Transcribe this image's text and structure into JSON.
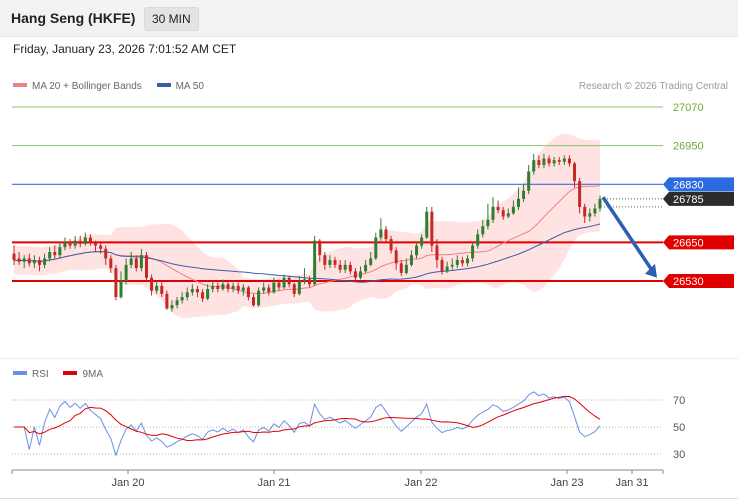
{
  "header": {
    "title": "Hang Seng (HKFE)",
    "timeframe": "30 MIN",
    "timestamp": "Friday, January 23, 2026 7:01:52 AM CET",
    "credit": "Research © 2026 Trading Central"
  },
  "colors": {
    "bull": "#2e7d32",
    "bear": "#c62828",
    "bollinger_fill": "#ffe2e2",
    "ma20": "#f08080",
    "ma50": "#3a5ea8",
    "level_red": "#e00000",
    "level_blue": "#3b6fe0",
    "level_green": "#8cc56a",
    "rsi": "#6b8fe6",
    "rsi_ma": "#e00000"
  },
  "chart_data": [
    {
      "type": "candlestick",
      "legend": [
        {
          "name": "MA 20 + Bollinger Bands",
          "color": "#f08080"
        },
        {
          "name": "MA 50",
          "color": "#3a5ea8"
        }
      ],
      "ylim": [
        26430,
        27100
      ],
      "x_ticks": [
        "Jan 20",
        "Jan 21",
        "Jan 22",
        "Jan 23",
        "Jan 31"
      ],
      "levels": [
        {
          "label": "27070",
          "value": 27070,
          "style": "green-line"
        },
        {
          "label": "26950",
          "value": 26950,
          "style": "green-line"
        },
        {
          "label": "26830",
          "value": 26830,
          "style": "blue-tag"
        },
        {
          "label": "26785",
          "value": 26785,
          "style": "dark-tag"
        },
        {
          "label": "26650",
          "value": 26650,
          "style": "red-tag"
        },
        {
          "label": "26530",
          "value": 26530,
          "style": "red-tag"
        }
      ],
      "arrow": {
        "from": 26790,
        "to": 26540,
        "direction": "down"
      },
      "candles": [
        [
          26615,
          26595,
          26640,
          26580
        ],
        [
          26600,
          26590,
          26620,
          26580
        ],
        [
          26590,
          26600,
          26610,
          26570
        ],
        [
          26600,
          26585,
          26615,
          26575
        ],
        [
          26585,
          26595,
          26610,
          26570
        ],
        [
          26595,
          26580,
          26605,
          26560
        ],
        [
          26580,
          26600,
          26615,
          26570
        ],
        [
          26600,
          26620,
          26635,
          26590
        ],
        [
          26620,
          26610,
          26640,
          26600
        ],
        [
          26610,
          26635,
          26650,
          26600
        ],
        [
          26635,
          26650,
          26665,
          26625
        ],
        [
          26650,
          26640,
          26660,
          26630
        ],
        [
          26640,
          26655,
          26670,
          26630
        ],
        [
          26655,
          26645,
          26670,
          26635
        ],
        [
          26645,
          26665,
          26680,
          26640
        ],
        [
          26665,
          26650,
          26675,
          26640
        ],
        [
          26650,
          26640,
          26655,
          26620
        ],
        [
          26640,
          26630,
          26650,
          26615
        ],
        [
          26630,
          26600,
          26640,
          26580
        ],
        [
          26600,
          26570,
          26610,
          26555
        ],
        [
          26570,
          26480,
          26580,
          26470
        ],
        [
          26480,
          26530,
          26560,
          26475
        ],
        [
          26530,
          26580,
          26600,
          26520
        ],
        [
          26580,
          26600,
          26620,
          26570
        ],
        [
          26600,
          26570,
          26610,
          26560
        ],
        [
          26570,
          26610,
          26630,
          26560
        ],
        [
          26610,
          26540,
          26620,
          26530
        ],
        [
          26540,
          26500,
          26550,
          26485
        ],
        [
          26500,
          26515,
          26530,
          26490
        ],
        [
          26515,
          26490,
          26530,
          26480
        ],
        [
          26490,
          26445,
          26500,
          26440
        ],
        [
          26445,
          26455,
          26470,
          26435
        ],
        [
          26455,
          26470,
          26480,
          26445
        ],
        [
          26470,
          26480,
          26495,
          26460
        ],
        [
          26480,
          26495,
          26510,
          26470
        ],
        [
          26495,
          26505,
          26520,
          26485
        ],
        [
          26505,
          26495,
          26515,
          26480
        ],
        [
          26495,
          26475,
          26505,
          26465
        ],
        [
          26475,
          26505,
          26520,
          26470
        ],
        [
          26505,
          26515,
          26530,
          26495
        ],
        [
          26515,
          26505,
          26525,
          26495
        ],
        [
          26505,
          26520,
          26535,
          26500
        ],
        [
          26520,
          26505,
          26530,
          26495
        ],
        [
          26505,
          26515,
          26525,
          26495
        ],
        [
          26515,
          26500,
          26525,
          26490
        ],
        [
          26500,
          26510,
          26520,
          26485
        ],
        [
          26510,
          26480,
          26515,
          26470
        ],
        [
          26480,
          26455,
          26490,
          26450
        ],
        [
          26455,
          26500,
          26510,
          26450
        ],
        [
          26500,
          26510,
          26525,
          26490
        ],
        [
          26510,
          26495,
          26520,
          26485
        ],
        [
          26495,
          26525,
          26540,
          26490
        ],
        [
          26525,
          26510,
          26535,
          26500
        ],
        [
          26510,
          26540,
          26550,
          26505
        ],
        [
          26540,
          26520,
          26545,
          26510
        ],
        [
          26520,
          26490,
          26525,
          26480
        ],
        [
          26490,
          26530,
          26545,
          26485
        ],
        [
          26530,
          26535,
          26570,
          26520
        ],
        [
          26535,
          26520,
          26545,
          26510
        ],
        [
          26520,
          26655,
          26670,
          26515
        ],
        [
          26655,
          26610,
          26660,
          26590
        ],
        [
          26610,
          26580,
          26620,
          26565
        ],
        [
          26580,
          26595,
          26610,
          26570
        ],
        [
          26595,
          26580,
          26605,
          26570
        ],
        [
          26580,
          26565,
          26595,
          26555
        ],
        [
          26565,
          26580,
          26595,
          26555
        ],
        [
          26580,
          26560,
          26590,
          26550
        ],
        [
          26560,
          26540,
          26570,
          26530
        ],
        [
          26540,
          26560,
          26575,
          26535
        ],
        [
          26560,
          26580,
          26595,
          26555
        ],
        [
          26580,
          26600,
          26620,
          26575
        ],
        [
          26600,
          26665,
          26680,
          26595
        ],
        [
          26665,
          26690,
          26725,
          26655
        ],
        [
          26690,
          26660,
          26700,
          26650
        ],
        [
          26660,
          26625,
          26670,
          26615
        ],
        [
          26625,
          26585,
          26635,
          26565
        ],
        [
          26585,
          26555,
          26595,
          26545
        ],
        [
          26555,
          26580,
          26600,
          26550
        ],
        [
          26580,
          26610,
          26625,
          26575
        ],
        [
          26610,
          26640,
          26650,
          26600
        ],
        [
          26640,
          26665,
          26675,
          26630
        ],
        [
          26665,
          26745,
          26760,
          26660
        ],
        [
          26745,
          26640,
          26760,
          26620
        ],
        [
          26640,
          26595,
          26660,
          26570
        ],
        [
          26595,
          26560,
          26605,
          26550
        ],
        [
          26560,
          26575,
          26590,
          26555
        ],
        [
          26575,
          26580,
          26600,
          26565
        ],
        [
          26580,
          26595,
          26610,
          26570
        ],
        [
          26595,
          26585,
          26605,
          26575
        ],
        [
          26585,
          26600,
          26610,
          26575
        ],
        [
          26600,
          26640,
          26650,
          26590
        ],
        [
          26640,
          26675,
          26690,
          26630
        ],
        [
          26675,
          26700,
          26720,
          26665
        ],
        [
          26700,
          26720,
          26770,
          26690
        ],
        [
          26720,
          26760,
          26790,
          26710
        ],
        [
          26760,
          26750,
          26780,
          26740
        ],
        [
          26750,
          26730,
          26760,
          26720
        ],
        [
          26730,
          26740,
          26755,
          26725
        ],
        [
          26740,
          26760,
          26780,
          26735
        ],
        [
          26760,
          26785,
          26820,
          26750
        ],
        [
          26785,
          26810,
          26830,
          26775
        ],
        [
          26810,
          26870,
          26890,
          26800
        ],
        [
          26870,
          26905,
          26925,
          26860
        ],
        [
          26905,
          26890,
          26920,
          26880
        ],
        [
          26890,
          26910,
          26925,
          26880
        ],
        [
          26910,
          26895,
          26920,
          26885
        ],
        [
          26895,
          26905,
          26915,
          26885
        ],
        [
          26905,
          26900,
          26915,
          26890
        ],
        [
          26900,
          26910,
          26920,
          26890
        ],
        [
          26910,
          26895,
          26920,
          26885
        ],
        [
          26895,
          26840,
          26900,
          26820
        ],
        [
          26840,
          26760,
          26850,
          26740
        ],
        [
          26760,
          26730,
          26770,
          26710
        ],
        [
          26730,
          26740,
          26755,
          26715
        ],
        [
          26740,
          26755,
          26770,
          26730
        ],
        [
          26755,
          26785,
          26795,
          26745
        ]
      ]
    },
    {
      "type": "line",
      "legend": [
        {
          "name": "RSI",
          "color": "#6b8fe6"
        },
        {
          "name": "9MA",
          "color": "#e00000"
        }
      ],
      "ylim": [
        20,
        80
      ],
      "y_ticks": [
        "70",
        "50",
        "30"
      ]
    }
  ]
}
